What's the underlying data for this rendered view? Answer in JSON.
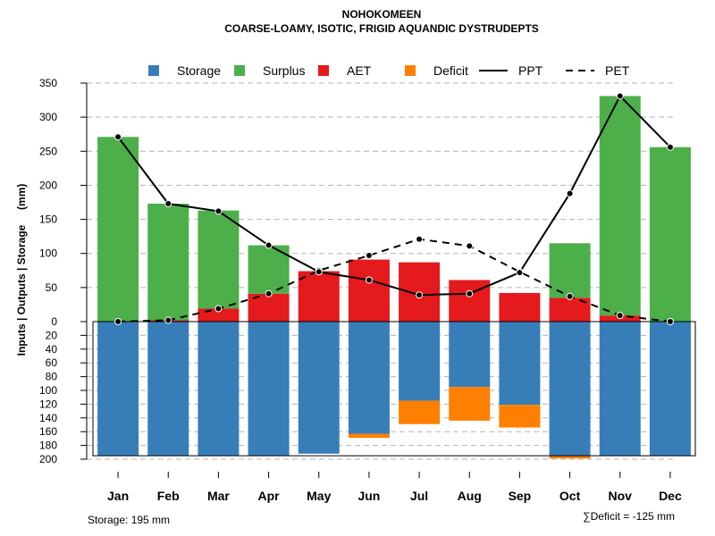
{
  "chart_data": {
    "type": "bar",
    "title": "NOHOKOMEEN",
    "subtitle": "COARSE-LOAMY, ISOTIC, FRIGID AQUANDIC DYSTRUDEPTS",
    "ylabel": "Inputs | Outputs | Storage     (mm)",
    "categories": [
      "Jan",
      "Feb",
      "Mar",
      "Apr",
      "May",
      "Jun",
      "Jul",
      "Aug",
      "Sep",
      "Oct",
      "Nov",
      "Dec"
    ],
    "ylim_top": [
      0,
      350
    ],
    "ylim_bottom": [
      0,
      200
    ],
    "yticks_top": [
      "0",
      "50",
      "100",
      "150",
      "200",
      "250",
      "300",
      "350"
    ],
    "yticks_bottom": [
      "20",
      "40",
      "60",
      "80",
      "100",
      "120",
      "140",
      "160",
      "180",
      "200"
    ],
    "grid": true,
    "legend": {
      "position": "top",
      "items": [
        {
          "label": "Storage",
          "color": "#377EB8",
          "kind": "box"
        },
        {
          "label": "Surplus",
          "color": "#4DAF4A",
          "kind": "box"
        },
        {
          "label": "AET",
          "color": "#E41A1C",
          "kind": "box"
        },
        {
          "label": "Deficit",
          "color": "#FF7F00",
          "kind": "box"
        },
        {
          "label": "PPT",
          "color": "#000000",
          "kind": "solid"
        },
        {
          "label": "PET",
          "color": "#000000",
          "kind": "dashed"
        }
      ]
    },
    "series": [
      {
        "name": "AET",
        "color": "#E41A1C",
        "values": [
          0,
          2,
          19,
          41,
          74,
          91,
          87,
          61,
          42,
          35,
          9,
          0
        ]
      },
      {
        "name": "Surplus",
        "color": "#4DAF4A",
        "values": [
          271,
          171,
          144,
          71,
          0,
          0,
          0,
          0,
          0,
          80,
          322,
          256
        ]
      },
      {
        "name": "Storage",
        "color": "#377EB8",
        "values": [
          195,
          195,
          195,
          195,
          192,
          163,
          115,
          95,
          121,
          195,
          195,
          195
        ]
      },
      {
        "name": "Deficit",
        "color": "#FF7F00",
        "values": [
          0,
          0,
          0,
          0,
          0,
          6,
          34,
          49,
          33,
          4,
          0,
          0
        ]
      },
      {
        "name": "PPT",
        "color": "#000000",
        "values": [
          271,
          173,
          162,
          112,
          73,
          61,
          39,
          41,
          72,
          188,
          331,
          256
        ]
      },
      {
        "name": "PET",
        "color": "#000000",
        "values": [
          0,
          2,
          19,
          41,
          75,
          97,
          121,
          111,
          73,
          37,
          9,
          0
        ]
      }
    ],
    "annotations": {
      "storage_note": "Storage: 195 mm",
      "deficit_note": "∑Deficit = -125 mm"
    }
  }
}
